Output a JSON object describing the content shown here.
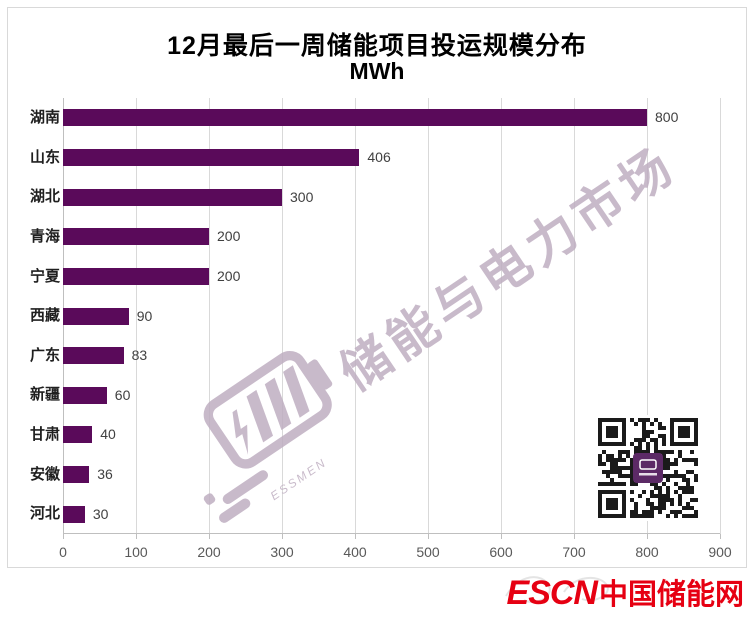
{
  "title": "12月最后一周储能项目投运规模分布",
  "subtitle": "MWh",
  "chart_data": {
    "type": "bar",
    "orientation": "horizontal",
    "title": "12月最后一周储能项目投运规模分布",
    "unit_label": "MWh",
    "categories": [
      "湖南",
      "山东",
      "湖北",
      "青海",
      "宁夏",
      "西藏",
      "广东",
      "新疆",
      "甘肃",
      "安徽",
      "河北"
    ],
    "values": [
      800,
      406,
      300,
      200,
      200,
      90,
      83,
      60,
      40,
      36,
      30
    ],
    "xlim": [
      0,
      900
    ],
    "x_ticks": [
      0,
      100,
      200,
      300,
      400,
      500,
      600,
      700,
      800,
      900
    ],
    "grid": "vertical-gridlines",
    "legend": "none",
    "value_labels": "outside-end",
    "bar_color": "#5a0a5a"
  },
  "watermark": {
    "diagonal_text": "储能与电力市场",
    "logo_caption": "ESSMEN",
    "color": "#bfaec1"
  },
  "qr_code": {
    "label": "wechat-qr-code",
    "center_color": "#5c2a66"
  },
  "footer_logo": {
    "text_en": "ESCN",
    "text_zh": "中国储能网",
    "color": "#e60012"
  }
}
